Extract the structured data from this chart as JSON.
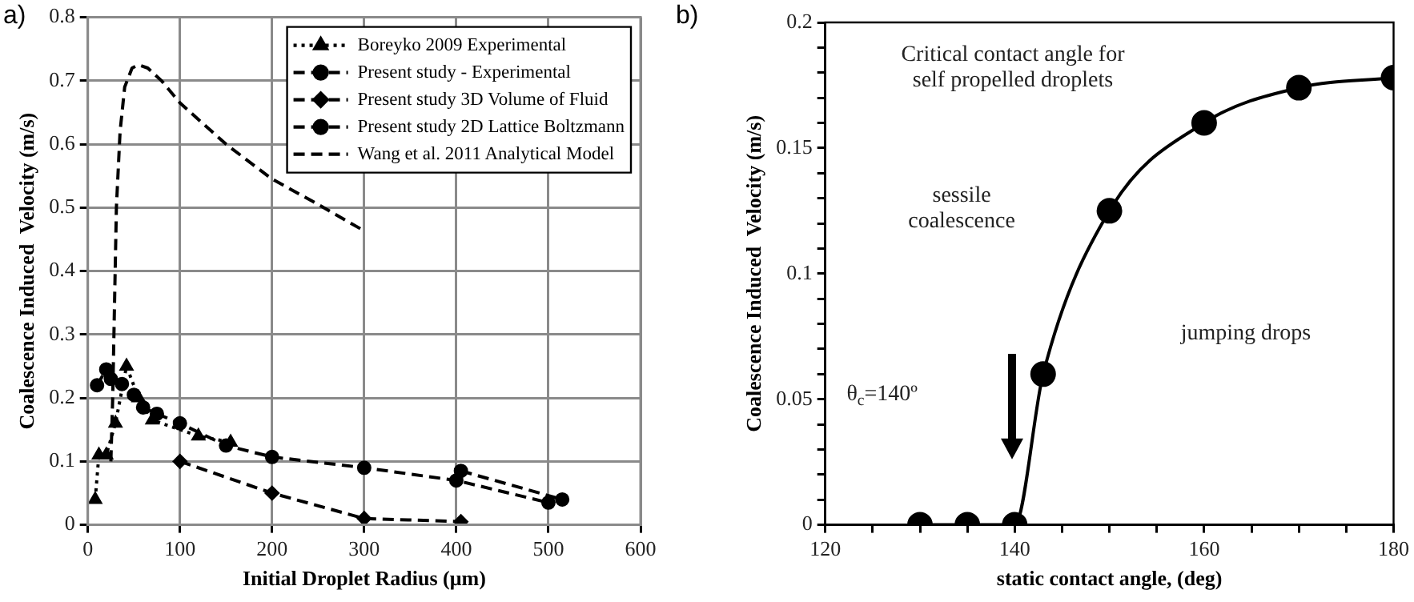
{
  "chart_data": [
    {
      "type": "line",
      "title": "a)",
      "xlabel": "Initial Droplet Radius (μm)",
      "ylabel": "Coalescence Induced  Velocity (m/s)",
      "xlim": [
        0,
        600
      ],
      "xticks": [
        0,
        100,
        200,
        300,
        400,
        500,
        600
      ],
      "ylim": [
        0,
        0.8
      ],
      "yticks": [
        0,
        0.1,
        0.2,
        0.3,
        0.4,
        0.5,
        0.6,
        0.7,
        0.8
      ],
      "grid": true,
      "legend": "top right",
      "series": [
        {
          "name": "Boreyko 2009 Experimental",
          "color": "#000000",
          "marker": "triangle",
          "line_style": "dotted",
          "x": [
            8,
            12,
            20,
            30,
            42,
            55,
            70,
            120,
            155
          ],
          "values": [
            0.04,
            0.11,
            0.11,
            0.16,
            0.25,
            0.2,
            0.165,
            0.14,
            0.13
          ]
        },
        {
          "name": "Present study - Experimental",
          "color": "#000000",
          "marker": "circle",
          "line_style": "dashed",
          "x": [
            405,
            515
          ],
          "values": [
            0.085,
            0.04
          ]
        },
        {
          "name": "Present study 3D Volume of Fluid",
          "color": "#000000",
          "marker": "diamond",
          "line_style": "dashed",
          "x": [
            100,
            200,
            300,
            405
          ],
          "values": [
            0.1,
            0.05,
            0.01,
            0.005
          ]
        },
        {
          "name": "Present study 2D Lattice Boltzmann",
          "color": "#000000",
          "marker": "circle",
          "line_style": "dashed",
          "x": [
            10,
            20,
            25,
            37,
            50,
            60,
            75,
            100,
            150,
            200,
            300,
            400,
            500
          ],
          "values": [
            0.22,
            0.245,
            0.23,
            0.222,
            0.205,
            0.185,
            0.175,
            0.16,
            0.125,
            0.107,
            0.09,
            0.07,
            0.035
          ]
        },
        {
          "name": "Wang et al. 2011 Analytical Model",
          "color": "#000000",
          "marker": "none",
          "line_style": "dashed",
          "x": [
            25,
            27,
            29,
            31,
            35,
            40,
            48,
            55,
            65,
            80,
            100,
            150,
            200,
            250,
            298
          ],
          "values": [
            0.1,
            0.2,
            0.35,
            0.5,
            0.62,
            0.69,
            0.72,
            0.725,
            0.72,
            0.7,
            0.665,
            0.6,
            0.545,
            0.505,
            0.465
          ]
        }
      ]
    },
    {
      "type": "line",
      "title": "b)",
      "xlabel": "static contact angle, (deg)",
      "ylabel": "Coalescence Induced  Velocity (m/s)",
      "xlim": [
        120,
        180
      ],
      "xticks": [
        120,
        {
          "value": 125,
          "label": null
        },
        {
          "value": 130,
          "label": null
        },
        {
          "value": 135,
          "label": null
        },
        140,
        {
          "value": 145,
          "label": null
        },
        {
          "value": 150,
          "label": null
        },
        {
          "value": 155,
          "label": null
        },
        160,
        {
          "value": 165,
          "label": null
        },
        {
          "value": 170,
          "label": null
        },
        {
          "value": 175,
          "label": null
        },
        180
      ],
      "ylim": [
        0,
        0.2
      ],
      "yticks": [
        0,
        {
          "value": 0.01,
          "label": null
        },
        {
          "value": 0.02,
          "label": null
        },
        {
          "value": 0.03,
          "label": null
        },
        {
          "value": 0.04,
          "label": null
        },
        0.05,
        {
          "value": 0.06,
          "label": null
        },
        {
          "value": 0.07,
          "label": null
        },
        {
          "value": 0.08,
          "label": null
        },
        {
          "value": 0.09,
          "label": null
        },
        0.1,
        {
          "value": 0.11,
          "label": null
        },
        {
          "value": 0.12,
          "label": null
        },
        {
          "value": 0.13,
          "label": null
        },
        {
          "value": 0.14,
          "label": null
        },
        0.15,
        {
          "value": 0.16,
          "label": null
        },
        {
          "value": 0.17,
          "label": null
        },
        {
          "value": 0.18,
          "label": null
        },
        {
          "value": 0.19,
          "label": null
        },
        0.2
      ],
      "marker": "circle",
      "line_style": "solid",
      "annotations": [
        "Critical contact angle for self propelled droplets",
        "sessile coalescence",
        "jumping drops",
        "θ$_{c}$=140º"
      ],
      "series": [
        {
          "color": "#000000",
          "x": [
            130,
            135,
            140,
            143,
            150,
            160,
            170,
            180
          ],
          "values": [
            0,
            0,
            0,
            0.06,
            0.125,
            0.16,
            0.174,
            0.178
          ]
        }
      ]
    }
  ]
}
